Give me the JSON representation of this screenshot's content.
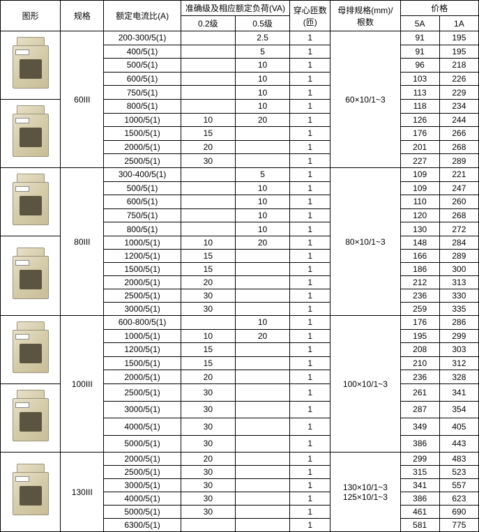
{
  "headers": {
    "image": "图形",
    "spec": "规格",
    "ratio": "额定电流比(A)",
    "accuracy": "准确级及相应额定负荷(VA)",
    "class02": "0.2级",
    "class05": "0.5级",
    "turns": "穿心匝数\n(匝)",
    "busbar": "母排规格(mm)/\n根数",
    "price": "价格",
    "price5a": "5A",
    "price1a": "1A"
  },
  "groups": [
    {
      "spec": "60III",
      "busbar": "60×10/1~3",
      "rows": [
        {
          "ratio": "200-300/5(1)",
          "c02": "",
          "c05": "2.5",
          "t": "1",
          "p5": "91",
          "p1": "195"
        },
        {
          "ratio": "400/5(1)",
          "c02": "",
          "c05": "5",
          "t": "1",
          "p5": "91",
          "p1": "195"
        },
        {
          "ratio": "500/5(1)",
          "c02": "",
          "c05": "10",
          "t": "1",
          "p5": "96",
          "p1": "218"
        },
        {
          "ratio": "600/5(1)",
          "c02": "",
          "c05": "10",
          "t": "1",
          "p5": "103",
          "p1": "226"
        },
        {
          "ratio": "750/5(1)",
          "c02": "",
          "c05": "10",
          "t": "1",
          "p5": "113",
          "p1": "229"
        },
        {
          "ratio": "800/5(1)",
          "c02": "",
          "c05": "10",
          "t": "1",
          "p5": "118",
          "p1": "234"
        },
        {
          "ratio": "1000/5(1)",
          "c02": "10",
          "c05": "20",
          "t": "1",
          "p5": "126",
          "p1": "244"
        },
        {
          "ratio": "1500/5(1)",
          "c02": "15",
          "c05": "",
          "t": "1",
          "p5": "176",
          "p1": "266"
        },
        {
          "ratio": "2000/5(1)",
          "c02": "20",
          "c05": "",
          "t": "1",
          "p5": "201",
          "p1": "268"
        },
        {
          "ratio": "2500/5(1)",
          "c02": "30",
          "c05": "",
          "t": "1",
          "p5": "227",
          "p1": "289"
        }
      ]
    },
    {
      "spec": "80III",
      "busbar": "80×10/1~3",
      "rows": [
        {
          "ratio": "300-400/5(1)",
          "c02": "",
          "c05": "5",
          "t": "1",
          "p5": "109",
          "p1": "221"
        },
        {
          "ratio": "500/5(1)",
          "c02": "",
          "c05": "10",
          "t": "1",
          "p5": "109",
          "p1": "247"
        },
        {
          "ratio": "600/5(1)",
          "c02": "",
          "c05": "10",
          "t": "1",
          "p5": "110",
          "p1": "260"
        },
        {
          "ratio": "750/5(1)",
          "c02": "",
          "c05": "10",
          "t": "1",
          "p5": "120",
          "p1": "268"
        },
        {
          "ratio": "800/5(1)",
          "c02": "",
          "c05": "10",
          "t": "1",
          "p5": "130",
          "p1": "272"
        },
        {
          "ratio": "1000/5(1)",
          "c02": "10",
          "c05": "20",
          "t": "1",
          "p5": "148",
          "p1": "284"
        },
        {
          "ratio": "1200/5(1)",
          "c02": "15",
          "c05": "",
          "t": "1",
          "p5": "166",
          "p1": "289"
        },
        {
          "ratio": "1500/5(1)",
          "c02": "15",
          "c05": "",
          "t": "1",
          "p5": "186",
          "p1": "300"
        },
        {
          "ratio": "2000/5(1)",
          "c02": "20",
          "c05": "",
          "t": "1",
          "p5": "212",
          "p1": "313"
        },
        {
          "ratio": "2500/5(1)",
          "c02": "30",
          "c05": "",
          "t": "1",
          "p5": "236",
          "p1": "330"
        },
        {
          "ratio": "3000/5(1)",
          "c02": "30",
          "c05": "",
          "t": "1",
          "p5": "259",
          "p1": "335"
        }
      ]
    },
    {
      "spec": "100III",
      "busbar": "100×10/1~3",
      "rows": [
        {
          "ratio": "600-800/5(1)",
          "c02": "",
          "c05": "10",
          "t": "1",
          "p5": "176",
          "p1": "286"
        },
        {
          "ratio": "1000/5(1)",
          "c02": "10",
          "c05": "20",
          "t": "1",
          "p5": "195",
          "p1": "299"
        },
        {
          "ratio": "1200/5(1)",
          "c02": "15",
          "c05": "",
          "t": "1",
          "p5": "208",
          "p1": "303"
        },
        {
          "ratio": "1500/5(1)",
          "c02": "15",
          "c05": "",
          "t": "1",
          "p5": "210",
          "p1": "312"
        },
        {
          "ratio": "2000/5(1)",
          "c02": "20",
          "c05": "",
          "t": "1",
          "p5": "236",
          "p1": "328"
        },
        {
          "ratio": "2500/5(1)",
          "c02": "30",
          "c05": "",
          "t": "1",
          "p5": "261",
          "p1": "341"
        },
        {
          "ratio": "3000/5(1)",
          "c02": "30",
          "c05": "",
          "t": "1",
          "p5": "287",
          "p1": "354"
        },
        {
          "ratio": "4000/5(1)",
          "c02": "30",
          "c05": "",
          "t": "1",
          "p5": "349",
          "p1": "405"
        },
        {
          "ratio": "5000/5(1)",
          "c02": "30",
          "c05": "",
          "t": "1",
          "p5": "386",
          "p1": "443"
        }
      ]
    },
    {
      "spec": "130III",
      "busbar": "130×10/1~3\n125×10/1~3",
      "rows": [
        {
          "ratio": "2000/5(1)",
          "c02": "20",
          "c05": "",
          "t": "1",
          "p5": "299",
          "p1": "483"
        },
        {
          "ratio": "2500/5(1)",
          "c02": "30",
          "c05": "",
          "t": "1",
          "p5": "315",
          "p1": "523"
        },
        {
          "ratio": "3000/5(1)",
          "c02": "30",
          "c05": "",
          "t": "1",
          "p5": "341",
          "p1": "557"
        },
        {
          "ratio": "4000/5(1)",
          "c02": "30",
          "c05": "",
          "t": "1",
          "p5": "386",
          "p1": "623"
        },
        {
          "ratio": "5000/5(1)",
          "c02": "30",
          "c05": "",
          "t": "1",
          "p5": "461",
          "p1": "690"
        },
        {
          "ratio": "6300/5(1)",
          "c02": "",
          "c05": "",
          "t": "1",
          "p5": "581",
          "p1": "775"
        }
      ]
    }
  ],
  "imageLayout": [
    {
      "group": 0,
      "span": 5
    },
    {
      "group": 0,
      "span": 5
    },
    {
      "group": 1,
      "span": 5
    },
    {
      "group": 1,
      "span": 6
    },
    {
      "group": 2,
      "span": 5
    },
    {
      "group": 2,
      "span": 4
    },
    {
      "group": 3,
      "span": 6
    }
  ]
}
